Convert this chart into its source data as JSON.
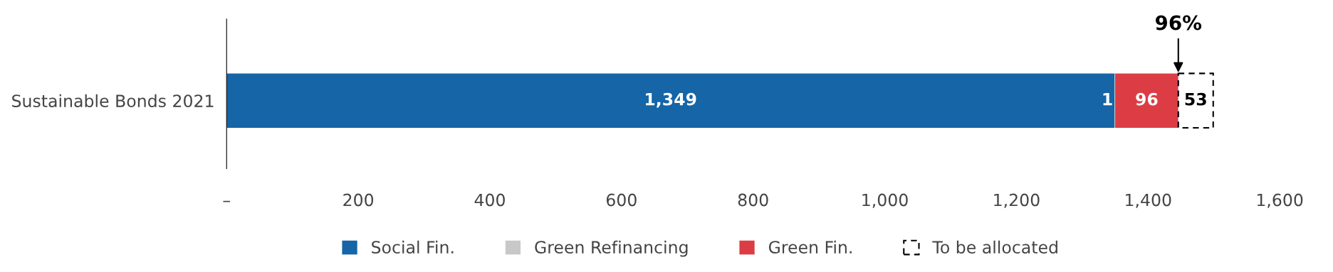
{
  "chart_data": {
    "type": "bar",
    "orientation": "horizontal",
    "stacked": true,
    "categories": [
      "Sustainable Bonds 2021"
    ],
    "series": [
      {
        "name": "Social Fin.",
        "color": "#1565a7",
        "values": [
          1349
        ],
        "value_labels": [
          "1,349"
        ]
      },
      {
        "name": "Green Refinancing",
        "color": "#c8c8c8",
        "values": [
          1
        ],
        "value_labels": [
          "1"
        ]
      },
      {
        "name": "Green Fin.",
        "color": "#dc3d45",
        "values": [
          96
        ],
        "value_labels": [
          "96"
        ]
      },
      {
        "name": "To be allocated",
        "color": "#ffffff",
        "line_style": "dashed",
        "values": [
          53
        ],
        "value_labels": [
          "53"
        ]
      }
    ],
    "xlim": [
      0,
      1600
    ],
    "xticks": [
      {
        "value": 0,
        "label": "–"
      },
      200,
      400,
      600,
      800,
      {
        "value": 1000,
        "label": "1,000"
      },
      {
        "value": 1200,
        "label": "1,200"
      },
      {
        "value": 1400,
        "label": "1,400"
      },
      {
        "value": 1600,
        "label": "1,600"
      }
    ],
    "annotations": [
      {
        "text": "96%",
        "x": 1446
      }
    ],
    "legend": "bottom",
    "grid": false
  }
}
